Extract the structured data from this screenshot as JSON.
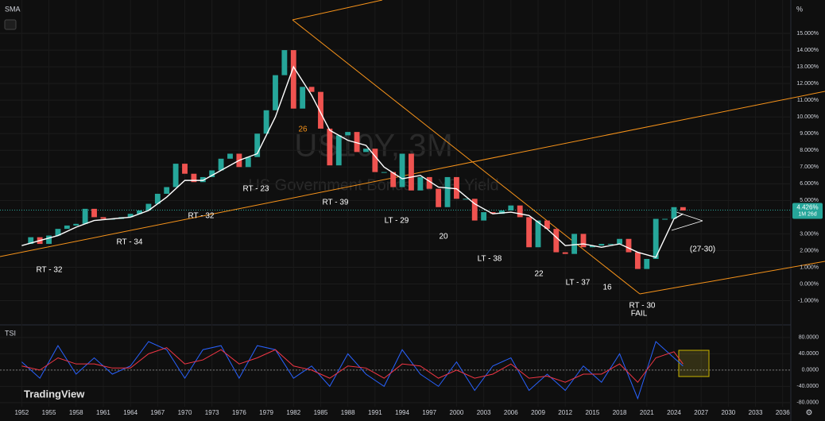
{
  "chart_data": [
    {
      "type": "line",
      "title": "US10Y, 3M",
      "subtitle": "US Government Bonds 10 YR Yield",
      "legend": "SMA",
      "unit": "%",
      "brand": "TradingView",
      "x": [
        1952,
        1953,
        1954,
        1955,
        1956,
        1957,
        1958,
        1959,
        1960,
        1961,
        1962,
        1963,
        1964,
        1965,
        1966,
        1967,
        1968,
        1969,
        1970,
        1971,
        1972,
        1973,
        1974,
        1975,
        1976,
        1977,
        1978,
        1979,
        1980,
        1981,
        1982,
        1983,
        1984,
        1985,
        1986,
        1987,
        1988,
        1989,
        1990,
        1991,
        1992,
        1993,
        1994,
        1995,
        1996,
        1997,
        1998,
        1999,
        2000,
        2001,
        2002,
        2003,
        2004,
        2005,
        2006,
        2007,
        2008,
        2009,
        2010,
        2011,
        2012,
        2013,
        2014,
        2015,
        2016,
        2017,
        2018,
        2019,
        2020,
        2021,
        2022,
        2023,
        2024,
        2025
      ],
      "series": [
        {
          "up_color": "#26a69a",
          "down_color": "#ef5350",
          "values": [
            2.4,
            2.8,
            2.4,
            2.9,
            3.3,
            3.5,
            3.6,
            4.5,
            4.0,
            3.9,
            3.9,
            4.0,
            4.2,
            4.4,
            4.8,
            5.4,
            5.8,
            7.2,
            6.6,
            6.1,
            6.4,
            6.8,
            7.5,
            7.8,
            7.0,
            7.6,
            9.0,
            10.4,
            12.5,
            14.0,
            10.5,
            11.8,
            11.5,
            9.3,
            7.1,
            8.9,
            9.1,
            7.9,
            8.1,
            6.7,
            6.7,
            5.8,
            7.8,
            5.6,
            6.4,
            5.7,
            4.6,
            6.4,
            5.1,
            5.1,
            3.8,
            4.3,
            4.2,
            4.4,
            4.7,
            4.0,
            2.2,
            3.8,
            3.3,
            1.9,
            1.8,
            3.0,
            2.2,
            2.3,
            2.4,
            2.4,
            2.7,
            1.9,
            0.9,
            1.5,
            3.9,
            3.9,
            4.6,
            4.4
          ]
        },
        {
          "name": "SMA",
          "color": "#ffffff",
          "x": [
            1952,
            1954,
            1956,
            1958,
            1960,
            1962,
            1964,
            1966,
            1968,
            1970,
            1972,
            1974,
            1976,
            1978,
            1980,
            1982,
            1984,
            1986,
            1988,
            1990,
            1992,
            1994,
            1996,
            1998,
            2000,
            2002,
            2004,
            2006,
            2008,
            2010,
            2012,
            2014,
            2016,
            2018,
            2020,
            2022,
            2024,
            2025
          ],
          "values": [
            2.3,
            2.6,
            2.9,
            3.4,
            3.8,
            3.9,
            4.0,
            4.4,
            5.2,
            6.2,
            6.2,
            6.8,
            7.4,
            7.8,
            10.0,
            13.0,
            11.3,
            9.2,
            8.6,
            8.3,
            7.0,
            6.3,
            6.5,
            5.8,
            5.7,
            4.8,
            4.2,
            4.3,
            4.1,
            3.3,
            2.3,
            2.4,
            2.2,
            2.4,
            1.9,
            1.6,
            3.9,
            4.2
          ]
        }
      ],
      "last": {
        "value": 4.426,
        "label": "4.426%"
      },
      "countdown": "1M 26d",
      "annotations": [
        "RT - 32",
        "RT - 34",
        "RT - 32",
        "RT - 23",
        "26",
        "RT - 39",
        "LT - 29",
        "20",
        "LT - 38",
        "22",
        "LT - 37",
        "16",
        "RT - 30",
        "FAIL",
        "(27-30)"
      ],
      "xlim": [
        1949.6,
        2036.9
      ],
      "xticks": [
        1952,
        1955,
        1958,
        1961,
        1964,
        1967,
        1970,
        1973,
        1976,
        1979,
        1982,
        1985,
        1988,
        1991,
        1994,
        1997,
        2000,
        2003,
        2006,
        2009,
        2012,
        2015,
        2018,
        2021,
        2024,
        2027,
        2030,
        2033,
        2036
      ],
      "ylim": [
        -2.4,
        17
      ],
      "yticks": [
        {
          "value": -1,
          "label": "-1.000%"
        },
        {
          "value": 0,
          "label": "0.000%"
        },
        {
          "value": 1,
          "label": "1.000%"
        },
        {
          "value": 2,
          "label": "2.000%"
        },
        {
          "value": 3,
          "label": "3.000%"
        },
        {
          "value": 4,
          "label": "4.000%"
        },
        {
          "value": 5,
          "label": "5.000%"
        },
        {
          "value": 6,
          "label": "6.000%"
        },
        {
          "value": 7,
          "label": "7.000%"
        },
        {
          "value": 8,
          "label": "8.000%"
        },
        {
          "value": 9,
          "label": "9.000%"
        },
        {
          "value": 10,
          "label": "10.000%"
        },
        {
          "value": 11,
          "label": "11.000%"
        },
        {
          "value": 12,
          "label": "12.000%"
        },
        {
          "value": 13,
          "label": "13.000%"
        },
        {
          "value": 14,
          "label": "14.000%"
        },
        {
          "value": 15,
          "label": "15.000%"
        }
      ]
    },
    {
      "type": "line",
      "legend": "TSI",
      "x": [
        1952,
        1954,
        1956,
        1958,
        1960,
        1962,
        1964,
        1966,
        1968,
        1970,
        1972,
        1974,
        1976,
        1978,
        1980,
        1982,
        1984,
        1986,
        1988,
        1990,
        1992,
        1994,
        1996,
        1998,
        2000,
        2002,
        2004,
        2006,
        2008,
        2010,
        2012,
        2014,
        2016,
        2018,
        2020,
        2022,
        2024,
        2025
      ],
      "series": [
        {
          "color": "#2962ff",
          "values": [
            20,
            -20,
            60,
            -10,
            30,
            -10,
            10,
            70,
            50,
            -20,
            50,
            60,
            -20,
            60,
            50,
            -20,
            10,
            -40,
            40,
            -10,
            -40,
            50,
            -10,
            -40,
            20,
            -50,
            10,
            30,
            -50,
            -10,
            -50,
            10,
            -30,
            40,
            -70,
            70,
            30,
            10
          ]
        },
        {
          "color": "#f23645",
          "values": [
            10,
            0,
            30,
            15,
            15,
            5,
            5,
            40,
            55,
            15,
            25,
            50,
            15,
            30,
            50,
            10,
            0,
            -20,
            10,
            5,
            -20,
            15,
            10,
            -20,
            0,
            -20,
            -10,
            15,
            -20,
            -15,
            -30,
            -10,
            -10,
            15,
            -30,
            30,
            45,
            15
          ]
        }
      ],
      "xlim": [
        1949.6,
        2036.9
      ],
      "ylim": [
        -90,
        109
      ],
      "yticks": [
        {
          "value": 80,
          "label": "80.0000"
        },
        {
          "value": 40,
          "label": "40.0000"
        },
        {
          "value": 0,
          "label": "0.0000"
        },
        {
          "value": -40,
          "label": "-40.0000"
        },
        {
          "value": -80,
          "label": "-80.0000"
        }
      ]
    }
  ]
}
